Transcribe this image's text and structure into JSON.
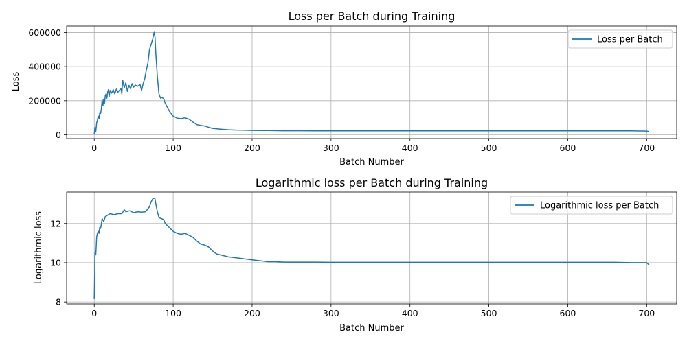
{
  "chart_data": [
    {
      "type": "line",
      "title": "Loss per Batch during Training",
      "xlabel": "Batch Number",
      "ylabel": "Loss",
      "xlim": [
        -35,
        738
      ],
      "ylim": [
        -22000,
        638000
      ],
      "xticks": [
        0,
        100,
        200,
        300,
        400,
        500,
        600,
        700
      ],
      "yticks": [
        0,
        200000,
        400000,
        600000
      ],
      "grid": true,
      "legend_position": "top-right",
      "color": "#1f77b4",
      "series": [
        {
          "name": "Loss per Batch",
          "x": [
            0,
            1,
            2,
            3,
            4,
            5,
            6,
            7,
            8,
            9,
            10,
            11,
            12,
            13,
            14,
            15,
            16,
            17,
            18,
            19,
            20,
            22,
            24,
            26,
            28,
            30,
            32,
            34,
            35,
            36,
            38,
            40,
            42,
            44,
            46,
            48,
            50,
            52,
            55,
            58,
            60,
            62,
            64,
            66,
            68,
            70,
            72,
            74,
            76,
            77,
            78,
            80,
            82,
            84,
            86,
            88,
            90,
            95,
            100,
            105,
            110,
            115,
            120,
            125,
            130,
            135,
            140,
            145,
            150,
            160,
            170,
            180,
            190,
            200,
            220,
            240,
            260,
            280,
            300,
            320,
            340,
            360,
            380,
            400,
            420,
            440,
            460,
            480,
            500,
            520,
            540,
            560,
            580,
            600,
            620,
            640,
            660,
            680,
            700,
            703
          ],
          "values": [
            5000,
            45000,
            20000,
            70000,
            85000,
            110000,
            95000,
            130000,
            125000,
            150000,
            205000,
            170000,
            210000,
            185000,
            230000,
            240000,
            215000,
            250000,
            265000,
            225000,
            260000,
            245000,
            265000,
            240000,
            268000,
            250000,
            262000,
            270000,
            240000,
            320000,
            275000,
            305000,
            255000,
            290000,
            270000,
            300000,
            280000,
            292000,
            285000,
            295000,
            260000,
            300000,
            330000,
            380000,
            420000,
            500000,
            530000,
            560000,
            605000,
            570000,
            480000,
            340000,
            240000,
            215000,
            220000,
            210000,
            185000,
            140000,
            110000,
            98000,
            95000,
            100000,
            92000,
            75000,
            60000,
            55000,
            52000,
            44000,
            38000,
            33000,
            30000,
            28000,
            27000,
            26000,
            25000,
            24000,
            24000,
            23000,
            23000,
            23000,
            23000,
            23000,
            23000,
            23000,
            23000,
            23000,
            23000,
            23000,
            23000,
            23000,
            23000,
            23000,
            23000,
            23000,
            23000,
            23000,
            23000,
            23000,
            22000,
            19000
          ]
        }
      ]
    },
    {
      "type": "line",
      "title": "Logarithmic loss per Batch during Training",
      "xlabel": "Batch Number",
      "ylabel": "Logarithmic loss",
      "xlim": [
        -35,
        738
      ],
      "ylim": [
        7.9,
        13.6
      ],
      "xticks": [
        0,
        100,
        200,
        300,
        400,
        500,
        600,
        700
      ],
      "yticks": [
        8,
        10,
        12
      ],
      "grid": true,
      "legend_position": "top-right",
      "color": "#1f77b4",
      "series": [
        {
          "name": "Logarithmic loss per Batch",
          "x": [
            0,
            1,
            2,
            3,
            4,
            5,
            6,
            7,
            8,
            9,
            10,
            12,
            14,
            16,
            18,
            20,
            25,
            30,
            35,
            38,
            40,
            45,
            50,
            55,
            60,
            65,
            70,
            72,
            74,
            76,
            77,
            78,
            80,
            82,
            85,
            88,
            90,
            95,
            100,
            105,
            110,
            115,
            120,
            125,
            130,
            135,
            140,
            145,
            150,
            155,
            160,
            170,
            180,
            190,
            200,
            210,
            220,
            230,
            240,
            260,
            280,
            300,
            320,
            340,
            360,
            380,
            400,
            420,
            440,
            460,
            480,
            500,
            520,
            540,
            560,
            580,
            600,
            620,
            640,
            660,
            680,
            700,
            703
          ],
          "values": [
            8.15,
            10.55,
            10.4,
            11.3,
            11.5,
            11.6,
            11.5,
            11.8,
            11.75,
            11.95,
            12.25,
            12.1,
            12.35,
            12.4,
            12.45,
            12.5,
            12.45,
            12.5,
            12.5,
            12.7,
            12.6,
            12.65,
            12.55,
            12.6,
            12.58,
            12.6,
            12.85,
            13.1,
            13.25,
            13.3,
            13.25,
            13.0,
            12.6,
            12.3,
            12.25,
            12.2,
            12.0,
            11.8,
            11.6,
            11.5,
            11.45,
            11.5,
            11.4,
            11.3,
            11.1,
            10.95,
            10.9,
            10.8,
            10.6,
            10.45,
            10.4,
            10.3,
            10.25,
            10.2,
            10.15,
            10.1,
            10.05,
            10.05,
            10.03,
            10.03,
            10.03,
            10.02,
            10.02,
            10.02,
            10.02,
            10.02,
            10.02,
            10.02,
            10.02,
            10.02,
            10.02,
            10.02,
            10.02,
            10.02,
            10.02,
            10.02,
            10.02,
            10.02,
            10.02,
            10.02,
            10.0,
            10.0,
            9.88
          ]
        }
      ]
    }
  ]
}
